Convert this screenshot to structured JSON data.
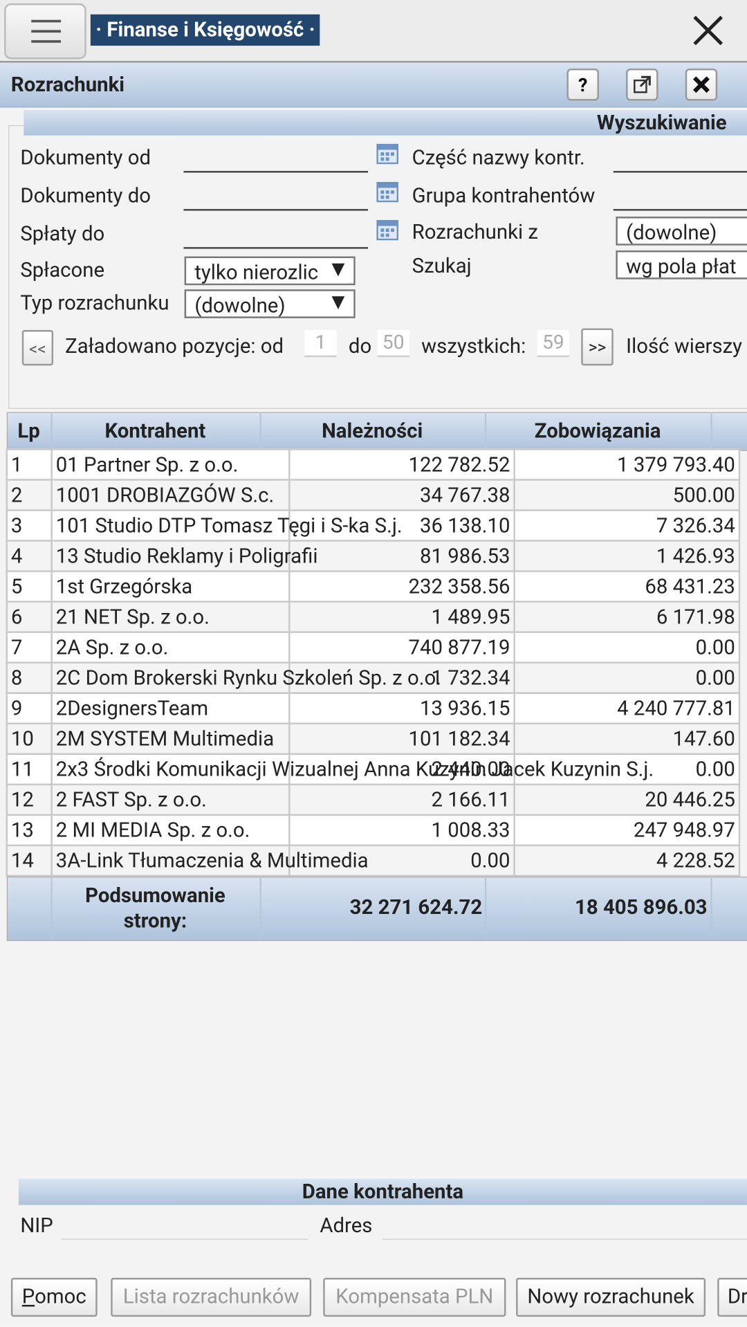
{
  "header": {
    "title": "· Finanse i Księgowość ·"
  },
  "panel": {
    "title": "Rozrachunki"
  },
  "search": {
    "title": "Wyszukiwanie",
    "left": [
      {
        "label": "Dokumenty od",
        "value": ""
      },
      {
        "label": "Dokumenty do",
        "value": ""
      },
      {
        "label": "Spłaty do",
        "value": ""
      },
      {
        "label": "Spłacone",
        "value": "tylko nierozlic"
      },
      {
        "label": "Typ rozrachunku",
        "value": "(dowolne)"
      }
    ],
    "right": [
      {
        "label": "Część nazwy kontr.",
        "value": ""
      },
      {
        "label": "Grupa kontrahentów",
        "value": ""
      },
      {
        "label": "Rozrachunki z",
        "value": "(dowolne)"
      },
      {
        "label": "Szukaj",
        "value": "wg pola płat"
      }
    ]
  },
  "pager": {
    "prev": "<<",
    "loaded": "Załadowano pozycje: od",
    "from": "1",
    "to_label": "do",
    "to": "50",
    "all_label": "wszystkich:",
    "all": "59",
    "next": ">>",
    "rows_label": "Ilość wierszy"
  },
  "table": {
    "columns": [
      "Lp",
      "Kontrahent",
      "Należności",
      "Zobowiązania"
    ],
    "rows": [
      [
        "1",
        "01 Partner Sp. z o.o.",
        "122 782.52",
        "1 379 793.40"
      ],
      [
        "2",
        "1001 DROBIAZGÓW S.c.",
        "34 767.38",
        "500.00"
      ],
      [
        "3",
        "101 Studio DTP Tomasz Tęgi i S-ka S.j.",
        "36 138.10",
        "7 326.34"
      ],
      [
        "4",
        "13 Studio Reklamy i Poligrafii",
        "81 986.53",
        "1 426.93"
      ],
      [
        "5",
        "1st Grzegórska",
        "232 358.56",
        "68 431.23"
      ],
      [
        "6",
        "21 NET Sp. z o.o.",
        "1 489.95",
        "6 171.98"
      ],
      [
        "7",
        "2A Sp. z o.o.",
        "740 877.19",
        "0.00"
      ],
      [
        "8",
        "2C Dom Brokerski Rynku Szkoleń Sp. z o.o.",
        "1 732.34",
        "0.00"
      ],
      [
        "9",
        "2DesignersTeam",
        "13 936.15",
        "4 240 777.81"
      ],
      [
        "10",
        "2M SYSTEM Multimedia",
        "101 182.34",
        "147.60"
      ],
      [
        "11",
        "2x3 Środki Komunikacji Wizualnej Anna Kuzynin Jacek Kuzynin S.j.",
        "2 440.00",
        "0.00"
      ],
      [
        "12",
        "2 FAST Sp. z o.o.",
        "2 166.11",
        "20 446.25"
      ],
      [
        "13",
        "2 MI MEDIA Sp. z o.o.",
        "1 008.33",
        "247 948.97"
      ],
      [
        "14",
        "3A-Link Tłumaczenia & Multimedia",
        "0.00",
        "4 228.52"
      ]
    ],
    "summary": {
      "label": "Podsumowanie strony:",
      "receivables": "32 271 624.72",
      "liabilities": "18 405 896.03"
    }
  },
  "contractor": {
    "title": "Dane kontrahenta",
    "nip": "NIP",
    "address": "Adres"
  },
  "buttons": [
    "Pomoc",
    "Lista rozrachunków",
    "Kompensata PLN",
    "Nowy rozrachunek",
    "Dr"
  ]
}
